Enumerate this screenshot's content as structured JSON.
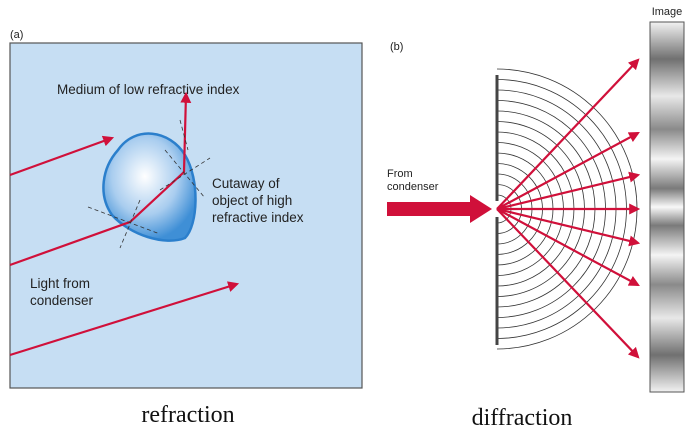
{
  "panel_a": {
    "label": "(a)",
    "medium_label": "Medium of low refractive index",
    "object_label": [
      "Cutaway of",
      "object of high",
      "refractive index"
    ],
    "light_label": [
      "Light from",
      "condenser"
    ],
    "caption": "refraction"
  },
  "panel_b": {
    "label": "(b)",
    "source_label": [
      "From",
      "condenser"
    ],
    "image_label": "Image",
    "caption": "diffraction"
  }
}
